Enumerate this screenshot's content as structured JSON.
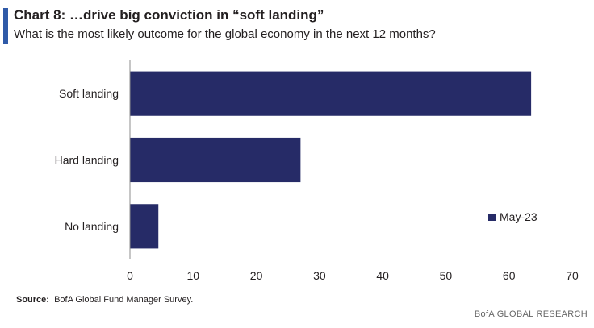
{
  "header": {
    "title": "Chart 8: …drive big conviction in “soft landing”",
    "subtitle": "What is the most likely outcome for the global economy in the next 12 months?"
  },
  "chart_data": {
    "type": "bar",
    "orientation": "horizontal",
    "categories": [
      "Soft landing",
      "Hard landing",
      "No landing"
    ],
    "series": [
      {
        "name": "May-23",
        "values": [
          63.5,
          27,
          4.5
        ],
        "color": "#262b67"
      }
    ],
    "xlim": [
      0,
      70
    ],
    "xticks": [
      0,
      10,
      20,
      30,
      40,
      50,
      60,
      70
    ],
    "grid": false,
    "legend_position": "right"
  },
  "footer": {
    "source_label": "Source:",
    "source_text": "BofA Global Fund Manager Survey.",
    "brand": "BofA GLOBAL RESEARCH"
  },
  "colors": {
    "accent": "#2f5aa8",
    "bar": "#262b67",
    "axis": "#8c8c8c"
  }
}
